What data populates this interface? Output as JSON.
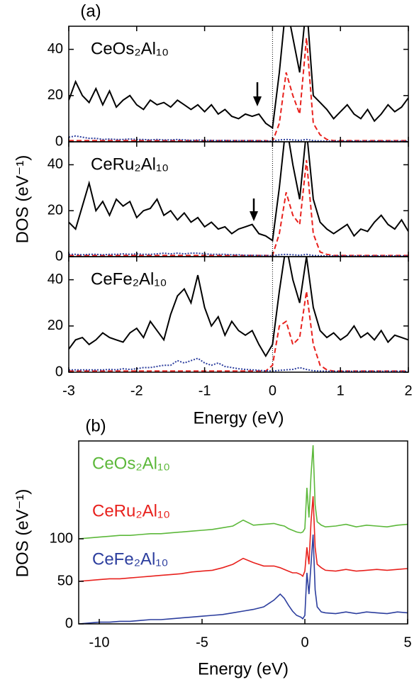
{
  "chart_data": [
    {
      "type": "line",
      "panel_label": "(a)",
      "xlabel": "Energy (eV)",
      "ylabel": "DOS (eV⁻¹)",
      "x": [
        -3.0,
        -2.9,
        -2.8,
        -2.7,
        -2.6,
        -2.5,
        -2.4,
        -2.3,
        -2.2,
        -2.1,
        -2.0,
        -1.9,
        -1.8,
        -1.7,
        -1.6,
        -1.5,
        -1.4,
        -1.3,
        -1.2,
        -1.1,
        -1.0,
        -0.9,
        -0.8,
        -0.7,
        -0.6,
        -0.5,
        -0.4,
        -0.3,
        -0.2,
        -0.1,
        0.0,
        0.1,
        0.2,
        0.3,
        0.4,
        0.5,
        0.6,
        0.7,
        0.8,
        0.9,
        1.0,
        1.1,
        1.2,
        1.3,
        1.4,
        1.5,
        1.6,
        1.7,
        1.8,
        1.9,
        2.0
      ],
      "xlim": [
        -3,
        2
      ],
      "xticks": [
        -3,
        -2,
        -1,
        0,
        1,
        2
      ],
      "subplots": [
        {
          "label": "CeOs₂Al₁₀",
          "ylim": [
            0,
            50
          ],
          "yticks": [
            0,
            20,
            40
          ],
          "series": [
            {
              "color": "#000000",
              "style": "solid",
              "values": [
                18,
                26,
                20,
                17,
                23,
                16,
                22,
                15,
                18,
                20,
                16,
                14,
                18,
                16,
                17,
                15,
                18,
                16,
                14,
                16,
                13,
                16,
                12,
                14,
                11,
                10,
                12,
                11,
                12,
                8,
                6,
                30,
                60,
                45,
                30,
                60,
                20,
                17,
                14,
                10,
                13,
                16,
                12,
                10,
                14,
                9,
                12,
                16,
                13,
                15,
                19
              ]
            },
            {
              "color": "#e8211d",
              "style": "dashed",
              "values": [
                0.5,
                0.5,
                0.5,
                0.5,
                0.5,
                0.5,
                0.5,
                0.5,
                0.5,
                0.5,
                0.5,
                0.5,
                0.5,
                0.5,
                0.5,
                0.5,
                0.5,
                0.5,
                0.5,
                0.5,
                0.5,
                0.5,
                0.5,
                0.5,
                0.5,
                0.5,
                0.5,
                0.5,
                0.5,
                0.5,
                0,
                8,
                30,
                20,
                12,
                45,
                8,
                3,
                1,
                0.5,
                0.5,
                0.5,
                0.5,
                0.5,
                0.5,
                0.5,
                0.5,
                0.5,
                0.5,
                0.5,
                0.5
              ]
            },
            {
              "color": "#2c3e9e",
              "style": "dotted",
              "values": [
                2,
                2.5,
                2,
                1.5,
                1.5,
                1,
                1.2,
                1,
                1,
                1.2,
                1,
                1,
                0.8,
                1,
                0.8,
                0.8,
                1,
                0.8,
                0.6,
                0.8,
                0.6,
                0.6,
                0.5,
                0.6,
                0.5,
                0.5,
                0.5,
                0.5,
                0.4,
                0.4,
                0.3,
                0.8,
                1,
                0.8,
                0.6,
                1,
                0.5,
                0.4,
                0.3,
                0.3,
                0.3,
                0.3,
                0.3,
                0.3,
                0.3,
                0.3,
                0.3,
                0.3,
                0.3,
                0.3,
                0.3
              ]
            }
          ]
        },
        {
          "label": "CeRu₂Al₁₀",
          "ylim": [
            0,
            50
          ],
          "yticks": [
            0,
            20,
            40
          ],
          "series": [
            {
              "color": "#000000",
              "style": "solid",
              "values": [
                15,
                12,
                22,
                32,
                20,
                24,
                18,
                25,
                22,
                24,
                17,
                20,
                21,
                25,
                18,
                20,
                16,
                19,
                15,
                17,
                13,
                15,
                12,
                13,
                10,
                12,
                13,
                14,
                10,
                9,
                7,
                30,
                58,
                40,
                25,
                55,
                25,
                15,
                12,
                10,
                12,
                14,
                9,
                12,
                11,
                15,
                18,
                14,
                12,
                16,
                11
              ]
            },
            {
              "color": "#e8211d",
              "style": "dashed",
              "values": [
                0.5,
                0.5,
                0.5,
                0.5,
                0.5,
                0.5,
                0.5,
                0.5,
                0.5,
                0.5,
                0.5,
                0.5,
                0.5,
                0.5,
                0.5,
                0.5,
                0.5,
                0.5,
                0.5,
                0.5,
                0.5,
                0.5,
                0.5,
                0.5,
                0.5,
                0.5,
                0.5,
                0.5,
                0.5,
                0.5,
                0.5,
                10,
                28,
                18,
                14,
                42,
                10,
                2,
                1,
                0.5,
                0.5,
                0.5,
                0.5,
                0.5,
                0.5,
                0.5,
                0.5,
                0.5,
                0.5,
                0.5,
                0.5
              ]
            },
            {
              "color": "#2c3e9e",
              "style": "dotted",
              "values": [
                1,
                1,
                0.8,
                1,
                1,
                0.8,
                1,
                1,
                1.2,
                1,
                1.2,
                1,
                1,
                1.2,
                1.5,
                1.2,
                1.5,
                1.2,
                1.5,
                1.5,
                1.2,
                1,
                1,
                1,
                0.8,
                0.8,
                0.6,
                0.6,
                0.5,
                0.5,
                0.4,
                0.8,
                1,
                0.8,
                0.6,
                1,
                0.5,
                0.4,
                0.3,
                0.3,
                0.3,
                0.3,
                0.3,
                0.3,
                0.3,
                0.3,
                0.3,
                0.3,
                0.3,
                0.3,
                0.3
              ]
            }
          ]
        },
        {
          "label": "CeFe₂Al₁₀",
          "ylim": [
            0,
            50
          ],
          "yticks": [
            0,
            20,
            40
          ],
          "series": [
            {
              "color": "#000000",
              "style": "solid",
              "values": [
                10,
                14,
                15,
                12,
                14,
                17,
                15,
                14,
                13,
                17,
                19,
                15,
                22,
                18,
                14,
                25,
                33,
                36,
                30,
                42,
                28,
                20,
                24,
                16,
                22,
                18,
                16,
                18,
                12,
                7,
                12,
                35,
                55,
                40,
                30,
                50,
                28,
                18,
                15,
                17,
                14,
                16,
                20,
                15,
                17,
                14,
                18,
                13,
                16,
                15,
                14
              ]
            },
            {
              "color": "#e8211d",
              "style": "dashed",
              "values": [
                0.5,
                0.5,
                0.5,
                0.5,
                0.5,
                0.5,
                0.5,
                0.5,
                0.5,
                0.5,
                0.5,
                0.5,
                0.5,
                0.5,
                0.5,
                0.5,
                0.5,
                0.5,
                0.5,
                0.5,
                0.5,
                0.5,
                0.5,
                0.5,
                0.5,
                0.5,
                0.5,
                0.5,
                0.5,
                0.5,
                3,
                20,
                22,
                12,
                15,
                35,
                12,
                3,
                1,
                0.5,
                0.5,
                0.5,
                0.5,
                0.5,
                0.5,
                0.5,
                0.5,
                0.5,
                0.5,
                0.5,
                0.5
              ]
            },
            {
              "color": "#2c3e9e",
              "style": "dotted",
              "values": [
                1,
                1,
                1,
                1,
                1,
                1,
                1.2,
                1,
                1.5,
                1.2,
                1.5,
                2,
                2,
                2.5,
                3,
                3,
                5,
                4,
                5,
                6,
                4,
                3,
                4,
                2.5,
                2,
                1.5,
                1.2,
                1,
                0.8,
                0.6,
                0.5,
                0.8,
                1,
                1.2,
                2,
                1.2,
                0.6,
                0.5,
                0.4,
                0.4,
                0.4,
                0.4,
                0.4,
                0.4,
                0.4,
                0.4,
                0.4,
                0.4,
                0.4,
                0.4,
                0.4
              ]
            }
          ]
        }
      ]
    },
    {
      "type": "line",
      "panel_label": "(b)",
      "xlabel": "Energy (eV)",
      "ylabel": "DOS (eV⁻¹)",
      "x": [
        -11,
        -10.5,
        -10,
        -9.5,
        -9,
        -8.5,
        -8,
        -7.5,
        -7,
        -6.5,
        -6,
        -5.5,
        -5,
        -4.5,
        -4,
        -3.5,
        -3,
        -2.5,
        -2,
        -1.5,
        -1.2,
        -1.0,
        -0.8,
        -0.6,
        -0.4,
        -0.2,
        -0.1,
        0,
        0.1,
        0.2,
        0.3,
        0.4,
        0.5,
        0.6,
        0.8,
        1.0,
        1.5,
        2,
        2.5,
        3,
        3.5,
        4,
        4.5,
        5
      ],
      "xlim": [
        -11,
        5
      ],
      "xticks": [
        -10,
        -5,
        0,
        5
      ],
      "ylim": [
        0,
        215
      ],
      "yticks": [
        0,
        50,
        100
      ],
      "series": [
        {
          "name": "CeOs₂Al₁₀",
          "color": "#5cb83a",
          "values": [
            100,
            101,
            102,
            103,
            104,
            104,
            105,
            106,
            106,
            107,
            108,
            109,
            110,
            111,
            113,
            115,
            122,
            116,
            117,
            118,
            116,
            115,
            112,
            110,
            108,
            107,
            108,
            112,
            160,
            125,
            175,
            210,
            140,
            120,
            116,
            114,
            115,
            117,
            114,
            116,
            115,
            114,
            116,
            117
          ]
        },
        {
          "name": "CeRu₂Al₁₀",
          "color": "#e8211d",
          "values": [
            50,
            51,
            52,
            53,
            53,
            54,
            55,
            56,
            57,
            58,
            59,
            61,
            62,
            63,
            66,
            70,
            77,
            72,
            68,
            68,
            66,
            64,
            62,
            60,
            60,
            58,
            56,
            62,
            90,
            70,
            120,
            150,
            90,
            70,
            66,
            63,
            62,
            64,
            62,
            63,
            64,
            63,
            64,
            65
          ]
        },
        {
          "name": "CeFe₂Al₁₀",
          "color": "#2c3e9e",
          "values": [
            0,
            1,
            2,
            2,
            3,
            3,
            4,
            5,
            5,
            6,
            7,
            8,
            9,
            10,
            11,
            13,
            15,
            17,
            20,
            28,
            35,
            30,
            22,
            15,
            10,
            8,
            6,
            10,
            60,
            35,
            70,
            105,
            40,
            20,
            14,
            13,
            12,
            14,
            12,
            14,
            13,
            12,
            14,
            13
          ]
        }
      ]
    }
  ]
}
